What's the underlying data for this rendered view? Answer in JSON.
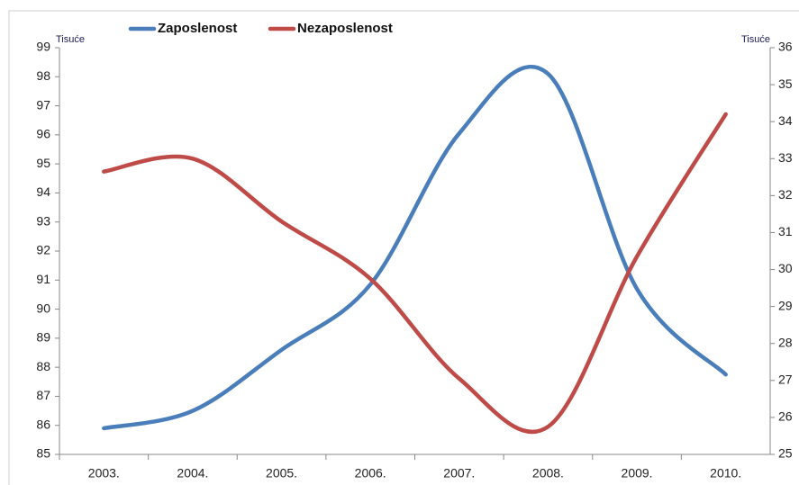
{
  "chart_data": {
    "type": "line",
    "categories": [
      "2003.",
      "2004.",
      "2005.",
      "2006.",
      "2007.",
      "2008.",
      "2009.",
      "2010."
    ],
    "series": [
      {
        "name": "Zaposlenost",
        "color": "#4a7ebb",
        "values": [
          85.9,
          86.5,
          88.6,
          90.85,
          96.05,
          98.1,
          90.7,
          87.75
        ]
      },
      {
        "name": "Nezaposlenost",
        "color": "#be4b48",
        "axis": "y2",
        "values": [
          32.65,
          33.0,
          31.3,
          29.75,
          27.05,
          25.75,
          30.35,
          34.2
        ]
      }
    ],
    "y_unit": "Tisuće",
    "y2_unit": "Tisuće",
    "ylim": [
      85,
      99
    ],
    "yticks": [
      85,
      86,
      87,
      88,
      89,
      90,
      91,
      92,
      93,
      94,
      95,
      96,
      97,
      98,
      99
    ],
    "y2lim": [
      25,
      36
    ],
    "y2ticks": [
      25,
      26,
      27,
      28,
      29,
      30,
      31,
      32,
      33,
      34,
      35,
      36
    ]
  }
}
